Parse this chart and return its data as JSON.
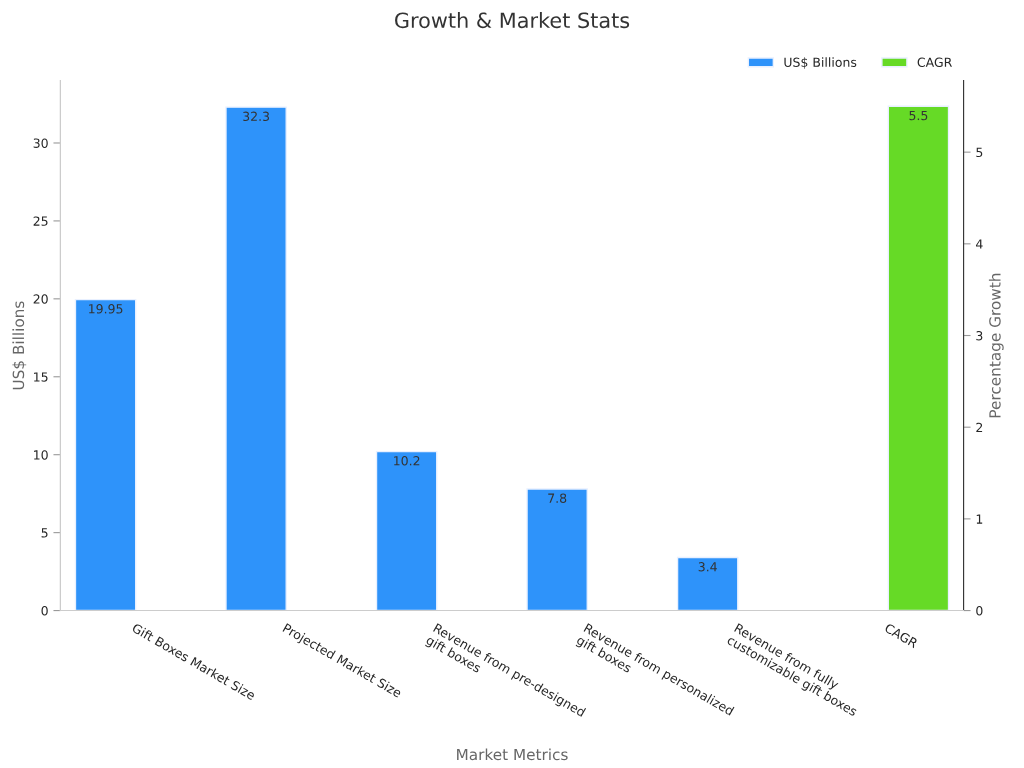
{
  "chart_data": {
    "type": "bar",
    "title": "Growth & Market Stats",
    "xlabel": "Market Metrics",
    "ylabel": "US$ Billions",
    "y2label": "Percentage Growth",
    "categories": [
      "Gift Boxes Market Size",
      "Projected Market Size",
      "Revenue from pre-designed\ngift boxes",
      "Revenue from personalized\ngift boxes",
      "Revenue from fully\ncustomizable gift boxes",
      "CAGR"
    ],
    "series": [
      {
        "name": "US$ Billions",
        "color": "#2e93fa",
        "values": [
          19.95,
          32.3,
          10.2,
          7.8,
          3.4,
          null
        ]
      },
      {
        "name": "CAGR",
        "color": "#66da26",
        "axis": "y2",
        "values": [
          null,
          null,
          null,
          null,
          null,
          5.5
        ]
      }
    ],
    "ylim": [
      0,
      34
    ],
    "yticks": [
      0,
      5,
      10,
      15,
      20,
      25,
      30
    ],
    "y2lim": [
      0,
      5.78
    ],
    "y2ticks": [
      0,
      1,
      2,
      3,
      4,
      5
    ],
    "data_labels": true,
    "legend": "top right",
    "grid": false
  }
}
